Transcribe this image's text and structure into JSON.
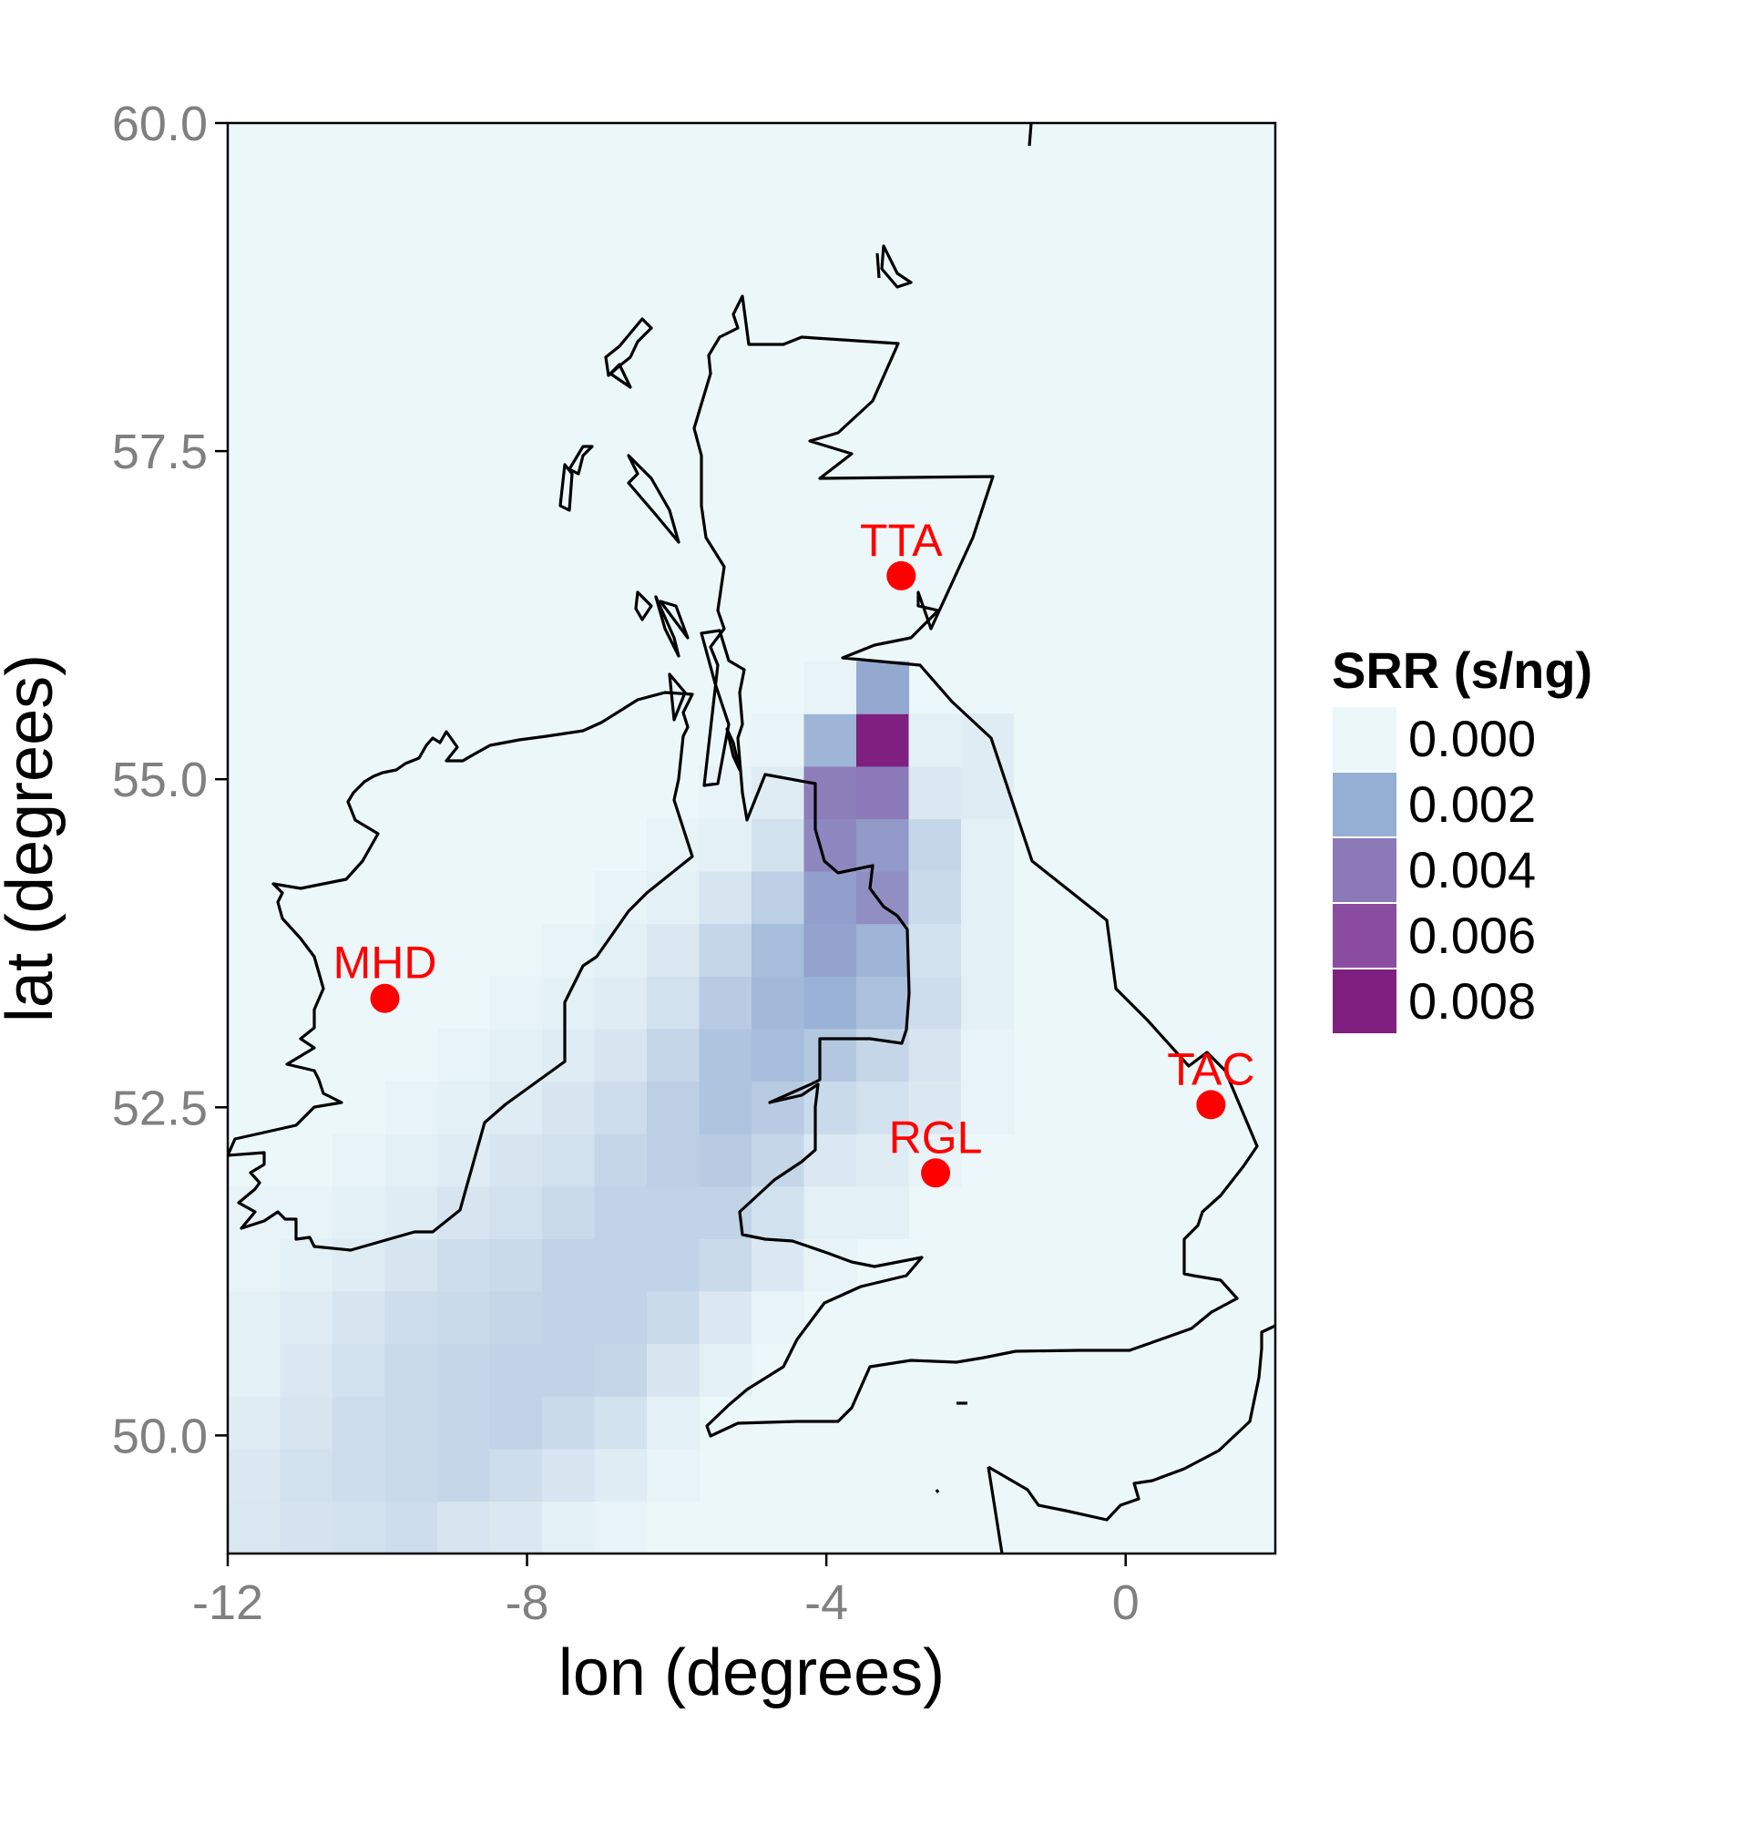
{
  "chart_data": {
    "type": "heatmap",
    "title": "",
    "xlabel": "lon (degrees)",
    "ylabel": "lat (degrees)",
    "xlim": [
      -12,
      2
    ],
    "ylim": [
      49.1,
      60
    ],
    "x_ticks": [
      -12,
      -8,
      -4,
      0
    ],
    "x_tick_labels": [
      "-12",
      "-8",
      "-4",
      "0"
    ],
    "y_ticks": [
      50.0,
      52.5,
      55.0,
      57.5,
      60.0
    ],
    "y_tick_labels": [
      "50.0",
      "52.5",
      "55.0",
      "57.5",
      "60.0"
    ],
    "grid": false,
    "legend": {
      "title": "SRR (s/ng)",
      "placement": "right",
      "entries": [
        {
          "label": "0.000",
          "color": "#ecf7f9"
        },
        {
          "label": "0.002",
          "color": "#95aed3"
        },
        {
          "label": "0.004",
          "color": "#8c79b7"
        },
        {
          "label": "0.006",
          "color": "#8a4c9f"
        },
        {
          "label": "0.008",
          "color": "#7f1f7f"
        }
      ]
    },
    "grid_cells": {
      "lon_start": -12,
      "lon_step": 0.7,
      "lat_start": 49.1,
      "lat_step": 0.4,
      "note_units": "SRR s/ng",
      "rows": [
        [
          0.00045,
          0.00055,
          0.0006,
          0.0007,
          0.0005,
          0.0004,
          0.0002,
          0.0001,
          0,
          0,
          0,
          0,
          0,
          0,
          0,
          0,
          0,
          0,
          0,
          0
        ],
        [
          0.0004,
          0.0006,
          0.0007,
          0.0008,
          0.0009,
          0.0007,
          0.0005,
          0.0003,
          0.0001,
          0,
          0,
          0,
          0,
          0,
          0,
          0,
          0,
          0,
          0,
          0
        ],
        [
          0.0003,
          0.0005,
          0.0007,
          0.0008,
          0.0009,
          0.001,
          0.0008,
          0.0006,
          0.0002,
          0,
          0,
          0,
          0,
          0,
          0,
          0,
          0,
          0,
          0,
          0
        ],
        [
          0.0002,
          0.0004,
          0.0006,
          0.0008,
          0.0009,
          0.001,
          0.001,
          0.0009,
          0.0005,
          0.0002,
          0,
          0,
          0,
          0,
          0,
          0,
          0,
          0,
          0,
          0
        ],
        [
          0.0002,
          0.0003,
          0.0005,
          0.0007,
          0.0008,
          0.0009,
          0.001,
          0.001,
          0.0008,
          0.0004,
          0.0001,
          0,
          0,
          0,
          0,
          0,
          0,
          0,
          0,
          0
        ],
        [
          0.0001,
          0.0002,
          0.0003,
          0.0005,
          0.0007,
          0.0008,
          0.001,
          0.001,
          0.001,
          0.0008,
          0.0004,
          0.0001,
          0,
          0,
          0,
          0,
          0,
          0,
          0,
          0
        ],
        [
          0.0001,
          0.0001,
          0.0002,
          0.0003,
          0.0005,
          0.0006,
          0.0008,
          0.001,
          0.001,
          0.001,
          0.0006,
          0.0002,
          0.0002,
          0,
          0,
          0,
          0,
          0,
          0,
          0
        ],
        [
          0,
          0,
          0.0001,
          0.0002,
          0.0003,
          0.0005,
          0.0006,
          0.0009,
          0.0011,
          0.0012,
          0.0009,
          0.0004,
          0.0003,
          0.0001,
          0,
          0,
          0,
          0,
          0,
          0
        ],
        [
          0,
          0,
          0,
          0.0001,
          0.0002,
          0.0003,
          0.0005,
          0.0007,
          0.0011,
          0.0014,
          0.0012,
          0.0008,
          0.0006,
          0.0004,
          0.0001,
          0,
          0,
          0,
          0,
          0
        ],
        [
          0,
          0,
          0,
          0,
          0.0001,
          0.0002,
          0.0003,
          0.0005,
          0.0009,
          0.0014,
          0.0016,
          0.0013,
          0.0009,
          0.0005,
          0.0001,
          0,
          0,
          0,
          0,
          0
        ],
        [
          0,
          0,
          0,
          0,
          0,
          0.0001,
          0.0002,
          0.0003,
          0.0006,
          0.0012,
          0.0017,
          0.0019,
          0.0015,
          0.0007,
          0.0002,
          0,
          0,
          0,
          0,
          0
        ],
        [
          0,
          0,
          0,
          0,
          0,
          0,
          0.0001,
          0.0002,
          0.0004,
          0.0009,
          0.0016,
          0.0024,
          0.0018,
          0.0006,
          0.0002,
          0,
          0,
          0,
          0,
          0
        ],
        [
          0,
          0,
          0,
          0,
          0,
          0,
          0,
          0.0001,
          0.0002,
          0.0005,
          0.0011,
          0.0026,
          0.0032,
          0.0008,
          0.0002,
          0,
          0,
          0,
          0,
          0
        ],
        [
          0,
          0,
          0,
          0,
          0,
          0,
          0,
          0,
          0.0001,
          0.0002,
          0.0006,
          0.0035,
          0.0028,
          0.0009,
          0.0002,
          0,
          0,
          0,
          0,
          0
        ],
        [
          0,
          0,
          0,
          0,
          0,
          0,
          0,
          0,
          0,
          0.0001,
          0.0003,
          0.0038,
          0.004,
          0.0004,
          0.0003,
          0,
          0,
          0,
          0,
          0
        ],
        [
          0,
          0,
          0,
          0,
          0,
          0,
          0,
          0,
          0,
          0,
          0.0001,
          0.0018,
          0.0085,
          0.0002,
          0.0003,
          0,
          0,
          0,
          0,
          0
        ],
        [
          0,
          0,
          0,
          0,
          0,
          0,
          0,
          0,
          0,
          0,
          0,
          0.0001,
          0.0022,
          0,
          0,
          0,
          0,
          0,
          0,
          0
        ]
      ]
    },
    "stations": [
      {
        "code": "MHD",
        "lon": -9.9,
        "lat": 53.33
      },
      {
        "code": "TTA",
        "lon": -3.0,
        "lat": 56.55
      },
      {
        "code": "TAC",
        "lon": 1.14,
        "lat": 52.52
      },
      {
        "code": "RGL",
        "lon": -2.54,
        "lat": 52.0
      }
    ],
    "colors": {
      "background": "#ecf7f9",
      "coastline": "#000000",
      "station": "#ff0000"
    }
  }
}
